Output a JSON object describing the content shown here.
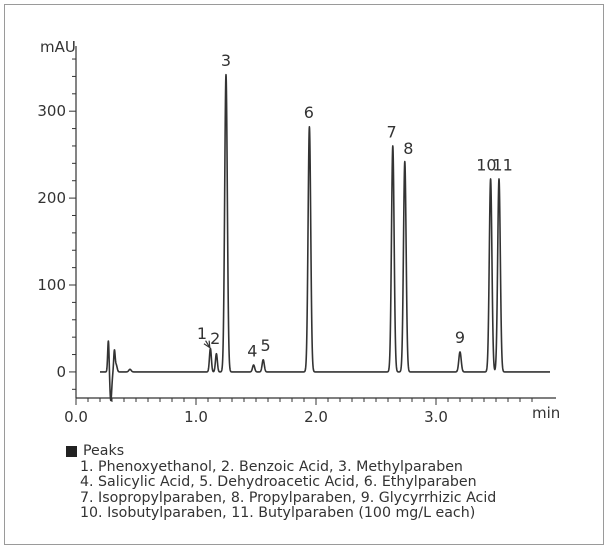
{
  "chart_data": {
    "type": "line",
    "ylabel": "mAU",
    "xlabel": "min",
    "xlim": [
      0.0,
      4.0
    ],
    "ylim": [
      -30,
      375
    ],
    "x_ticks": [
      "0.0",
      "1.0",
      "2.0",
      "3.0"
    ],
    "y_ticks": [
      "0",
      "100",
      "200",
      "300"
    ],
    "grid": false,
    "series": [
      {
        "peaks": [
          {
            "x": 0.27,
            "y": 37,
            "w": 0.006
          },
          {
            "x": 0.32,
            "y": 24,
            "w": 0.006
          },
          {
            "x": 0.335,
            "y": 8,
            "w": 0.008
          },
          {
            "x": 0.45,
            "y": 3,
            "w": 0.01
          },
          {
            "x": 1.12,
            "y": 27,
            "w": 0.008
          },
          {
            "x": 1.17,
            "y": 21,
            "w": 0.008
          },
          {
            "x": 1.25,
            "y": 342,
            "w": 0.011
          },
          {
            "x": 1.48,
            "y": 8,
            "w": 0.009
          },
          {
            "x": 1.56,
            "y": 14,
            "w": 0.009
          },
          {
            "x": 1.945,
            "y": 282,
            "w": 0.011
          },
          {
            "x": 2.64,
            "y": 260,
            "w": 0.011
          },
          {
            "x": 2.74,
            "y": 242,
            "w": 0.011
          },
          {
            "x": 3.2,
            "y": 23,
            "w": 0.01
          },
          {
            "x": 3.455,
            "y": 222,
            "w": 0.011
          },
          {
            "x": 3.525,
            "y": 222,
            "w": 0.011
          }
        ],
        "dips": [
          {
            "x": 0.29,
            "y": -33,
            "w": 0.008
          }
        ],
        "baseline": 0
      }
    ],
    "peak_labels": [
      {
        "text": "1",
        "x": 1.05,
        "y": 38
      },
      {
        "text": "2",
        "x": 1.16,
        "y": 32
      },
      {
        "text": "3",
        "x": 1.25,
        "y": 352
      },
      {
        "text": "4",
        "x": 1.47,
        "y": 18
      },
      {
        "text": "5",
        "x": 1.58,
        "y": 24
      },
      {
        "text": "6",
        "x": 1.94,
        "y": 292
      },
      {
        "text": "7",
        "x": 2.63,
        "y": 270
      },
      {
        "text": "8",
        "x": 2.77,
        "y": 251
      },
      {
        "text": "9",
        "x": 3.2,
        "y": 33
      },
      {
        "text": "10",
        "x": 3.42,
        "y": 232
      },
      {
        "text": "11",
        "x": 3.555,
        "y": 232
      }
    ],
    "arrow": {
      "from_x": 1.08,
      "from_y": 36,
      "to_x": 1.115,
      "to_y": 28
    },
    "line_color": "#333333",
    "axis_color": "#333333"
  },
  "legend": {
    "title": "Peaks",
    "lines": [
      "1. Phenoxyethanol, 2. Benzoic Acid, 3. Methylparaben",
      "4. Salicylic Acid, 5. Dehydroacetic Acid, 6. Ethylparaben",
      "7. Isopropylparaben, 8. Propylparaben, 9. Glycyrrhizic Acid",
      "10. Isobutylparaben, 11. Butylparaben (100 mg/L each)"
    ]
  }
}
